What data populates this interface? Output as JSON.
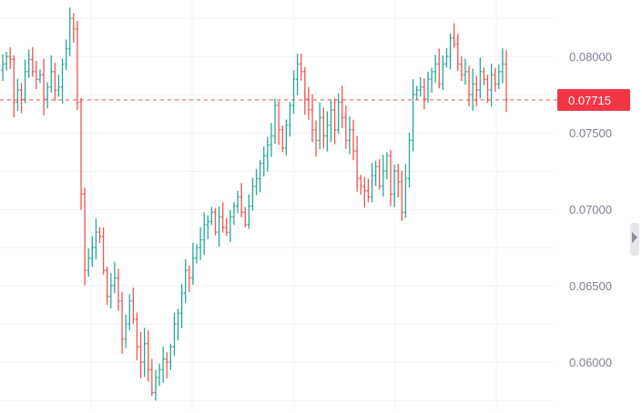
{
  "chart_data": {
    "type": "ohlc",
    "y_axis": {
      "ticks": [
        0.06,
        0.065,
        0.07,
        0.075,
        0.08
      ],
      "tick_labels": [
        "0.06000",
        "0.06500",
        "0.07000",
        "0.07500",
        "0.08000"
      ],
      "range": [
        0.058,
        0.0828
      ]
    },
    "current_price": 0.07715,
    "current_price_label": "0.07715",
    "colors": {
      "up": "#26a69a",
      "down": "#ef5350",
      "grid": "#f2f3f5",
      "axis_text": "#7d8190",
      "price_line": "#ef5350",
      "price_badge_bg": "#f23645",
      "price_badge_text": "#ffffff"
    },
    "grid": true,
    "close_series": [
      0.0795,
      0.08,
      0.0798,
      0.077,
      0.0778,
      0.0772,
      0.079,
      0.0798,
      0.079,
      0.0785,
      0.0788,
      0.0772,
      0.078,
      0.079,
      0.0778,
      0.078,
      0.0795,
      0.0805,
      0.0825,
      0.0818,
      0.077,
      0.071,
      0.066,
      0.0668,
      0.0675,
      0.0685,
      0.0682,
      0.066,
      0.0643,
      0.065,
      0.0655,
      0.064,
      0.0615,
      0.0625,
      0.064,
      0.0628,
      0.061,
      0.06,
      0.0612,
      0.0595,
      0.058,
      0.059,
      0.0595,
      0.0602,
      0.06,
      0.061,
      0.0625,
      0.0632,
      0.0645,
      0.066,
      0.0655,
      0.0668,
      0.0675,
      0.068,
      0.069,
      0.0692,
      0.0698,
      0.0685,
      0.0695,
      0.0688,
      0.0685,
      0.0695,
      0.0702,
      0.0708,
      0.0698,
      0.069,
      0.0702,
      0.0715,
      0.072,
      0.073,
      0.0735,
      0.0742,
      0.0748,
      0.0768,
      0.0752,
      0.074,
      0.0755,
      0.0768,
      0.0785,
      0.0795,
      0.079,
      0.0772,
      0.0765,
      0.0752,
      0.0745,
      0.076,
      0.0748,
      0.0755,
      0.0765,
      0.0752,
      0.077,
      0.076,
      0.0745,
      0.0752,
      0.0738,
      0.072,
      0.0715,
      0.0712,
      0.0708,
      0.0722,
      0.0728,
      0.0715,
      0.0725,
      0.0735,
      0.071,
      0.0725,
      0.0718,
      0.0698,
      0.072,
      0.0745,
      0.0775,
      0.0778,
      0.078,
      0.0772,
      0.0785,
      0.079,
      0.0795,
      0.0782,
      0.0795,
      0.08,
      0.0812,
      0.0808,
      0.0795,
      0.0788,
      0.079,
      0.0775,
      0.0782,
      0.0778,
      0.079,
      0.0785,
      0.0778,
      0.0788,
      0.0782,
      0.079,
      0.0795,
      0.0772
    ]
  }
}
